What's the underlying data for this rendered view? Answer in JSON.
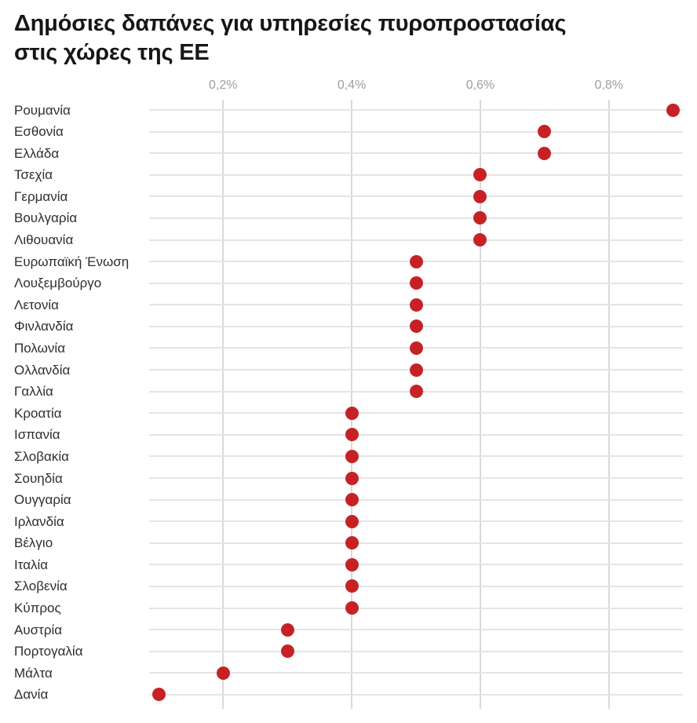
{
  "header": {
    "title_lines": [
      "Δημόσιες δαπάνες για υπηρεσίες πυροπροστασίας",
      "στις χώρες της ΕΕ"
    ]
  },
  "colors": {
    "dot": "#c62226",
    "row_line": "#e4e4e4",
    "grid_line": "#d9d9d9",
    "tick_text": "#9e9e9e",
    "label_text": "#2e2e2e",
    "title_text": "#161616",
    "background": "#ffffff"
  },
  "chart_data": {
    "type": "scatter",
    "subtype": "horizontal-dot-plot",
    "title": "Δημόσιες δαπάνες για υπηρεσίες πυροπροστασίας στις χώρες της ΕΕ",
    "xlabel": "",
    "ylabel": "",
    "grid": true,
    "legend": false,
    "x_ticks": [
      {
        "value": 0.2,
        "label": "0,2%"
      },
      {
        "value": 0.4,
        "label": "0,4%"
      },
      {
        "value": 0.6,
        "label": "0,6%"
      },
      {
        "value": 0.8,
        "label": "0,8%"
      }
    ],
    "xlim": [
      0.085,
      0.915
    ],
    "categories": [
      "Ρουμανία",
      "Εσθονία",
      "Ελλάδα",
      "Τσεχία",
      "Γερμανία",
      "Βουλγαρία",
      "Λιθουανία",
      "Ευρωπαϊκή Ένωση",
      "Λουξεμβούργο",
      "Λετονία",
      "Φινλανδία",
      "Πολωνία",
      "Ολλανδία",
      "Γαλλία",
      "Κροατία",
      "Ισπανία",
      "Σλοβακία",
      "Σουηδία",
      "Ουγγαρία",
      "Ιρλανδία",
      "Βέλγιο",
      "Ιταλία",
      "Σλοβενία",
      "Κύπρος",
      "Αυστρία",
      "Πορτογαλία",
      "Μάλτα",
      "Δανία"
    ],
    "values": [
      0.9,
      0.7,
      0.7,
      0.6,
      0.6,
      0.6,
      0.6,
      0.5,
      0.5,
      0.5,
      0.5,
      0.5,
      0.5,
      0.5,
      0.4,
      0.4,
      0.4,
      0.4,
      0.4,
      0.4,
      0.4,
      0.4,
      0.4,
      0.4,
      0.3,
      0.3,
      0.2,
      0.1
    ],
    "value_suffix": "%"
  }
}
